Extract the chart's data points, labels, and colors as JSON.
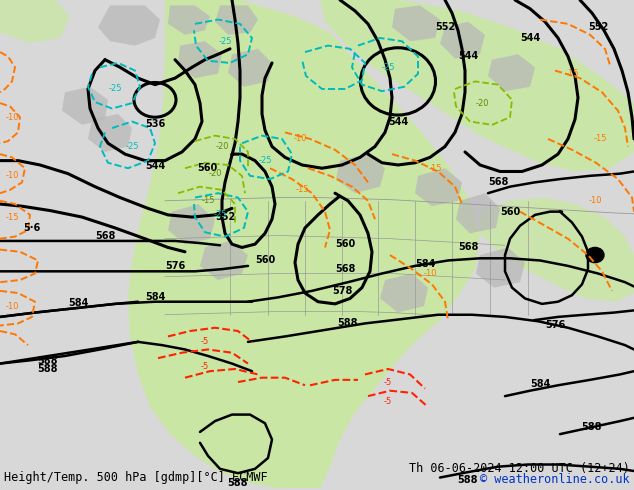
{
  "title_left": "Height/Temp. 500 hPa [gdmp][°C] ECMWF",
  "title_right": "Th 06-06-2024 12:00 UTC (12+24)",
  "copyright": "© weatheronline.co.uk",
  "bg_color": "#d8d8d8",
  "green_color": "#c8e8a0",
  "gray_land": "#b8b8b8",
  "z500_color": "#000000",
  "temp_orange": "#ff7700",
  "temp_cyan": "#00bbbb",
  "temp_lime": "#88bb00",
  "precip_red": "#ff2200",
  "border_gray": "#999999",
  "title_fontsize": 8.5,
  "label_fontsize": 7
}
